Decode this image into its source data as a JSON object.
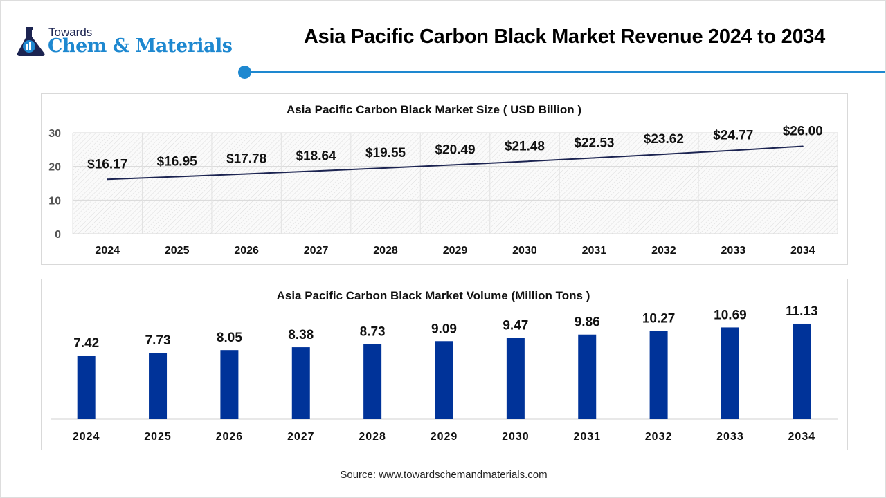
{
  "header": {
    "logo": {
      "line1": "Towards",
      "line2": "Chem & Materials"
    },
    "title": "Asia Pacific Carbon Black Market Revenue 2024 to 2034"
  },
  "colors": {
    "accent": "#1e88d0",
    "line": "#1c2451",
    "bar": "#003399"
  },
  "chart_data": [
    {
      "type": "line",
      "title": "Asia Pacific Carbon Black Market Size ( USD Billion )",
      "categories": [
        "2024",
        "2025",
        "2026",
        "2027",
        "2028",
        "2029",
        "2030",
        "2031",
        "2032",
        "2033",
        "2034"
      ],
      "values": [
        16.17,
        16.95,
        17.78,
        18.64,
        19.55,
        20.49,
        21.48,
        22.53,
        23.62,
        24.77,
        26.0
      ],
      "data_labels": [
        "$16.17",
        "$16.95",
        "$17.78",
        "$18.64",
        "$19.55",
        "$20.49",
        "$21.48",
        "$22.53",
        "$23.62",
        "$24.77",
        "$26.00"
      ],
      "yticks": [
        "0",
        "10",
        "20",
        "30"
      ],
      "ylim": [
        0,
        30
      ],
      "grid": true
    },
    {
      "type": "bar",
      "title": "Asia Pacific Carbon Black Market Volume (Million Tons )",
      "categories": [
        "2024",
        "2025",
        "2026",
        "2027",
        "2028",
        "2029",
        "2030",
        "2031",
        "2032",
        "2033",
        "2034"
      ],
      "values": [
        7.42,
        7.73,
        8.05,
        8.38,
        8.73,
        9.09,
        9.47,
        9.86,
        10.27,
        10.69,
        11.13
      ],
      "data_labels": [
        "7.42",
        "7.73",
        "8.05",
        "8.38",
        "8.73",
        "9.09",
        "9.47",
        "9.86",
        "10.27",
        "10.69",
        "11.13"
      ],
      "grid": false
    }
  ],
  "footer": {
    "source": "Source: www.towardschemandmaterials.com"
  }
}
